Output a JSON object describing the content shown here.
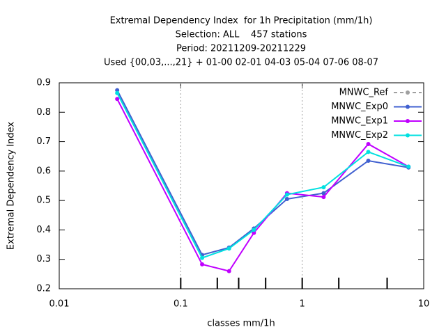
{
  "chart_data": {
    "type": "line",
    "title": "Extremal Dependency Index  for 1h Precipitation (mm/1h)",
    "subtitle": [
      "Selection: ALL    457 stations",
      "Period: 20211209-20211229",
      "Used {00,03,...,21} + 01-00 02-01 04-03 05-04 07-06 08-07"
    ],
    "x_label": "classes mm/1h",
    "y_label": "Extremal Dependency Index",
    "x": [
      0.03,
      0.15,
      0.25,
      0.4,
      0.75,
      1.5,
      3.5,
      7.5
    ],
    "series": [
      {
        "name": "MNWC_Ref",
        "color": "#a0a0a0",
        "dash": true,
        "values": [
          null,
          null,
          null,
          null,
          null,
          null,
          null,
          null
        ]
      },
      {
        "name": "MNWC_Exp0",
        "color": "#4060d0",
        "values": [
          0.875,
          0.315,
          0.34,
          0.405,
          0.505,
          0.525,
          0.635,
          0.612
        ]
      },
      {
        "name": "MNWC_Exp1",
        "color": "#c000ff",
        "values": [
          0.845,
          0.283,
          0.26,
          0.39,
          0.525,
          0.512,
          0.692,
          0.615
        ]
      },
      {
        "name": "MNWC_Exp2",
        "color": "#00e0e0",
        "values": [
          0.865,
          0.305,
          0.337,
          0.4,
          0.52,
          0.545,
          0.665,
          0.615
        ]
      }
    ],
    "xlog": true,
    "xlim": [
      0.01,
      10
    ],
    "xticks": [
      0.01,
      0.1,
      1,
      10
    ],
    "xgrid": [
      0.1,
      1
    ],
    "class_bounds": [
      0.1,
      0.2,
      0.3,
      0.5,
      1,
      2,
      5
    ],
    "ylim": [
      0.2,
      0.9
    ],
    "yticks": [
      0.2,
      0.3,
      0.4,
      0.5,
      0.6,
      0.7,
      0.8,
      0.9
    ],
    "legend": "top-right"
  }
}
